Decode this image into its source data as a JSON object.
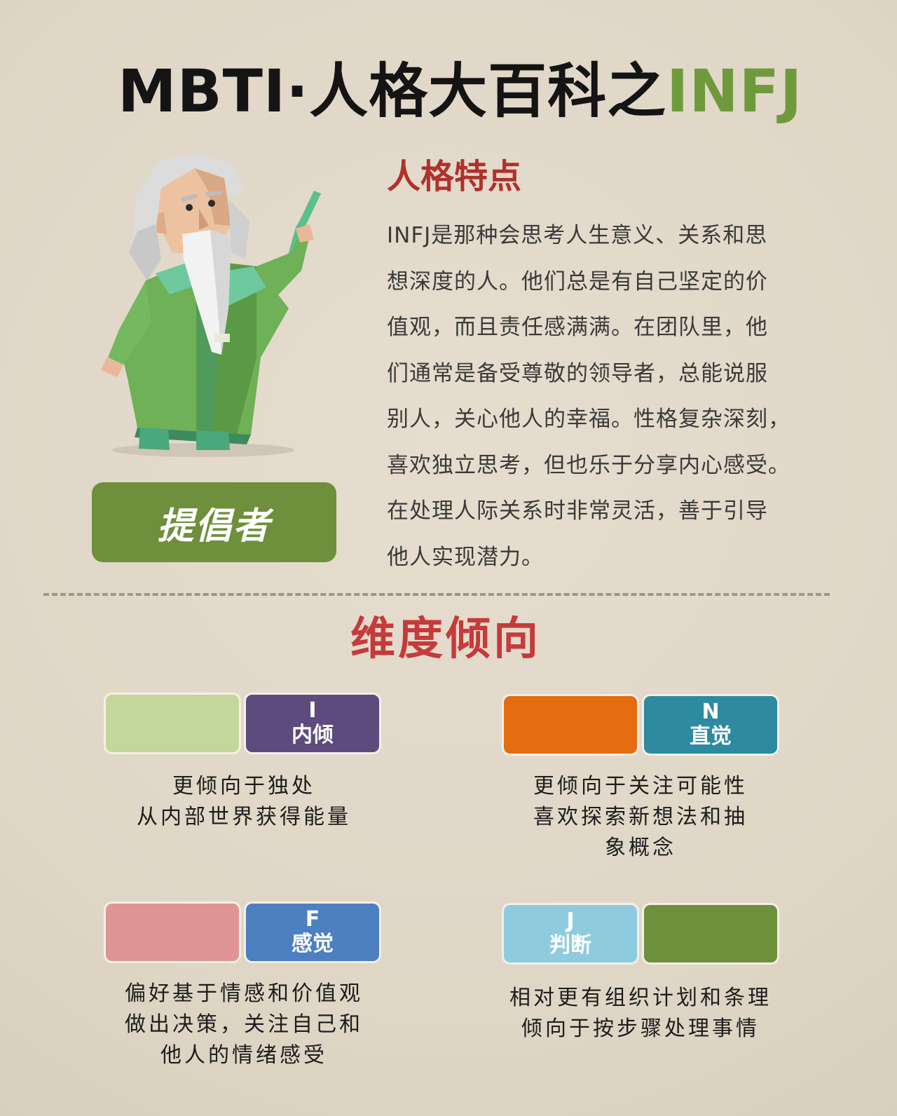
{
  "header": {
    "title_prefix": "MBTI·人格大百科之",
    "title_accent": "INFJ"
  },
  "colors": {
    "accent_green": "#6f9a3c",
    "traits_red": "#b0312c",
    "dims_red": "#c53a3a"
  },
  "character": {
    "icon": "sage-character-icon",
    "badge_label": "提倡者"
  },
  "traits": {
    "title": "人格特点",
    "lines": [
      "INFJ是那种会思考人生意义、关系和思",
      "想深度的人。他们总是有自己坚定的价",
      "值观，而且责任感满满。在团队里，他",
      "们通常是备受尊敬的领导者，总能说服",
      "别人，关心他人的幸福。性格复杂深刻，",
      "喜欢独立思考，但也乐于分享内心感受。",
      "在处理人际关系时非常灵活，善于引导",
      "他人实现潜力。"
    ]
  },
  "dimensions": {
    "title": "维度倾向",
    "items": [
      {
        "letter": "I",
        "name": "内倾",
        "left_color": "#c3d79a",
        "right_color": "#5e4b7e",
        "active_side": "right",
        "desc": [
          "更倾向于独处",
          "从内部世界获得能量"
        ]
      },
      {
        "letter": "N",
        "name": "直觉",
        "left_color": "#e56c11",
        "right_color": "#2d8aa0",
        "active_side": "right",
        "desc": [
          "更倾向于关注可能性",
          "喜欢探索新想法和抽",
          "象概念"
        ]
      },
      {
        "letter": "F",
        "name": "感觉",
        "left_color": "#de9594",
        "right_color": "#4d80c1",
        "active_side": "right",
        "desc": [
          "偏好基于情感和价值观",
          "做出决策，关注自己和",
          "他人的情绪感受"
        ]
      },
      {
        "letter": "J",
        "name": "判断",
        "left_color": "#8fcbdf",
        "right_color": "#6e8f3b",
        "active_side": "left",
        "desc": [
          "相对更有组织计划和条理",
          "倾向于按步骤处理事情"
        ]
      }
    ]
  }
}
